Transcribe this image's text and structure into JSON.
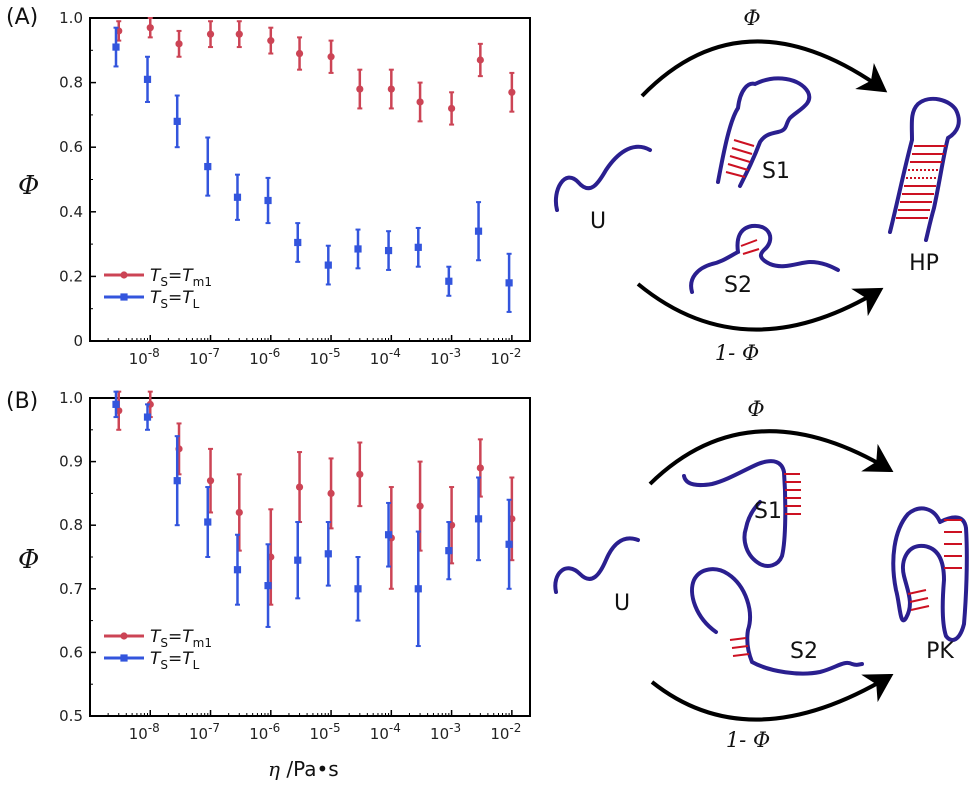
{
  "panels": {
    "a_label": "(A)",
    "b_label": "(B)"
  },
  "shared": {
    "xlabel_var": "η",
    "xlabel_unit": " /Pa•s",
    "ylabel": "Φ",
    "x_ticks": [
      "-8",
      "-7",
      "-6",
      "-5",
      "-4",
      "-3",
      "-2"
    ],
    "x_tick_base": "10"
  },
  "colors": {
    "red_series": "#cc4455",
    "blue_series": "#3355dd",
    "rna": "#2a1f8f",
    "bond": "#cc1122"
  },
  "diagram_a": {
    "top_label": "Φ",
    "bottom_label": "1- Φ",
    "u_label": "U",
    "s1_label": "S1",
    "s2_label": "S2",
    "end_label": "HP"
  },
  "diagram_b": {
    "top_label": "Φ",
    "bottom_label": "1- Φ",
    "u_label": "U",
    "s1_label": "S1",
    "s2_label": "S2",
    "end_label": "PK"
  },
  "chart_data": [
    {
      "type": "scatter",
      "panel": "A",
      "xscale": "log",
      "xlim": [
        1e-09,
        0.02
      ],
      "ylim": [
        0,
        1.0
      ],
      "y_ticks": [
        "0",
        "0.2",
        "0.4",
        "0.6",
        "0.8",
        "1.0"
      ],
      "ylabel": "Φ",
      "legend_position": "bottom-left",
      "series": [
        {
          "name": "red",
          "legend_lhs": "T",
          "legend_lhs_sub": "S",
          "legend_rhs": "T",
          "legend_rhs_sub": "m1",
          "color": "#cc4455",
          "marker": "circle",
          "x": [
            3e-09,
            1e-08,
            3e-08,
            1e-07,
            3e-07,
            1e-06,
            3e-06,
            1e-05,
            3e-05,
            0.0001,
            0.0003,
            0.001,
            0.003,
            0.01
          ],
          "y": [
            0.96,
            0.97,
            0.92,
            0.95,
            0.95,
            0.93,
            0.89,
            0.88,
            0.78,
            0.78,
            0.74,
            0.72,
            0.87,
            0.77
          ],
          "err": [
            0.03,
            0.03,
            0.04,
            0.04,
            0.04,
            0.04,
            0.05,
            0.05,
            0.06,
            0.06,
            0.06,
            0.05,
            0.05,
            0.06
          ]
        },
        {
          "name": "blue",
          "legend_lhs": "T",
          "legend_lhs_sub": "S",
          "legend_rhs": "T",
          "legend_rhs_sub": "L",
          "color": "#3355dd",
          "marker": "square",
          "x": [
            2.7e-09,
            9e-09,
            2.8e-08,
            9e-08,
            2.8e-07,
            9e-07,
            2.8e-06,
            9e-06,
            2.8e-05,
            9e-05,
            0.00028,
            0.0009,
            0.0028,
            0.009
          ],
          "y": [
            0.91,
            0.81,
            0.68,
            0.54,
            0.445,
            0.435,
            0.305,
            0.235,
            0.285,
            0.28,
            0.29,
            0.185,
            0.34,
            0.18
          ],
          "err": [
            0.06,
            0.07,
            0.08,
            0.09,
            0.07,
            0.07,
            0.06,
            0.06,
            0.06,
            0.06,
            0.06,
            0.045,
            0.09,
            0.09
          ]
        }
      ]
    },
    {
      "type": "scatter",
      "panel": "B",
      "xscale": "log",
      "xlim": [
        1e-09,
        0.02
      ],
      "ylim": [
        0.5,
        1.0
      ],
      "y_ticks": [
        "0.5",
        "0.6",
        "0.7",
        "0.8",
        "0.9",
        "1.0"
      ],
      "ylabel": "Φ",
      "xlabel": "η /Pa•s",
      "legend_position": "bottom-left",
      "series": [
        {
          "name": "red",
          "legend_lhs": "T",
          "legend_lhs_sub": "S",
          "legend_rhs": "T",
          "legend_rhs_sub": "m1",
          "color": "#cc4455",
          "marker": "circle",
          "x": [
            3e-09,
            1e-08,
            3e-08,
            1e-07,
            3e-07,
            1e-06,
            3e-06,
            1e-05,
            3e-05,
            0.0001,
            0.0003,
            0.001,
            0.003,
            0.01
          ],
          "y": [
            0.98,
            0.99,
            0.92,
            0.87,
            0.82,
            0.75,
            0.86,
            0.85,
            0.88,
            0.78,
            0.83,
            0.8,
            0.89,
            0.81
          ],
          "err": [
            0.03,
            0.02,
            0.04,
            0.05,
            0.06,
            0.075,
            0.055,
            0.055,
            0.05,
            0.08,
            0.07,
            0.06,
            0.045,
            0.065
          ]
        },
        {
          "name": "blue",
          "legend_lhs": "T",
          "legend_lhs_sub": "S",
          "legend_rhs": "T",
          "legend_rhs_sub": "L",
          "color": "#3355dd",
          "marker": "square",
          "x": [
            2.7e-09,
            9e-09,
            2.8e-08,
            9e-08,
            2.8e-07,
            9e-07,
            2.8e-06,
            9e-06,
            2.8e-05,
            9e-05,
            0.00028,
            0.0009,
            0.0028,
            0.009
          ],
          "y": [
            0.99,
            0.97,
            0.87,
            0.805,
            0.73,
            0.705,
            0.745,
            0.755,
            0.7,
            0.785,
            0.7,
            0.76,
            0.81,
            0.77
          ],
          "err": [
            0.02,
            0.02,
            0.07,
            0.055,
            0.055,
            0.065,
            0.06,
            0.05,
            0.05,
            0.05,
            0.09,
            0.045,
            0.065,
            0.07
          ]
        }
      ]
    }
  ]
}
